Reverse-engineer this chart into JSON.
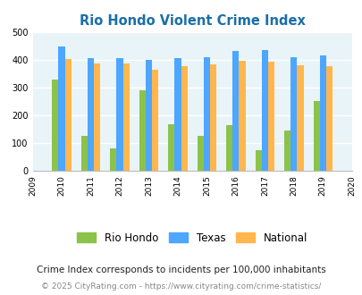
{
  "title": "Rio Hondo Violent Crime Index",
  "data_years": [
    2010,
    2011,
    2012,
    2013,
    2014,
    2015,
    2016,
    2017,
    2018,
    2019
  ],
  "rio_hondo": [
    330,
    128,
    83,
    293,
    170,
    127,
    166,
    77,
    147,
    253
  ],
  "texas": [
    450,
    408,
    408,
    400,
    406,
    411,
    434,
    437,
    410,
    417
  ],
  "national": [
    405,
    388,
    388,
    366,
    377,
    384,
    397,
    394,
    381,
    379
  ],
  "rio_hondo_color": "#8bc34a",
  "texas_color": "#4da6ff",
  "national_color": "#ffb74d",
  "background_color": "#e8f4f8",
  "ylim": [
    0,
    500
  ],
  "yticks": [
    0,
    100,
    200,
    300,
    400,
    500
  ],
  "bar_width": 0.22,
  "legend_labels": [
    "Rio Hondo",
    "Texas",
    "National"
  ],
  "footnote1": "Crime Index corresponds to incidents per 100,000 inhabitants",
  "footnote2": "© 2025 CityRating.com - https://www.cityrating.com/crime-statistics/",
  "title_color": "#1a6fa8",
  "footnote1_color": "#222222",
  "footnote2_color": "#888888"
}
